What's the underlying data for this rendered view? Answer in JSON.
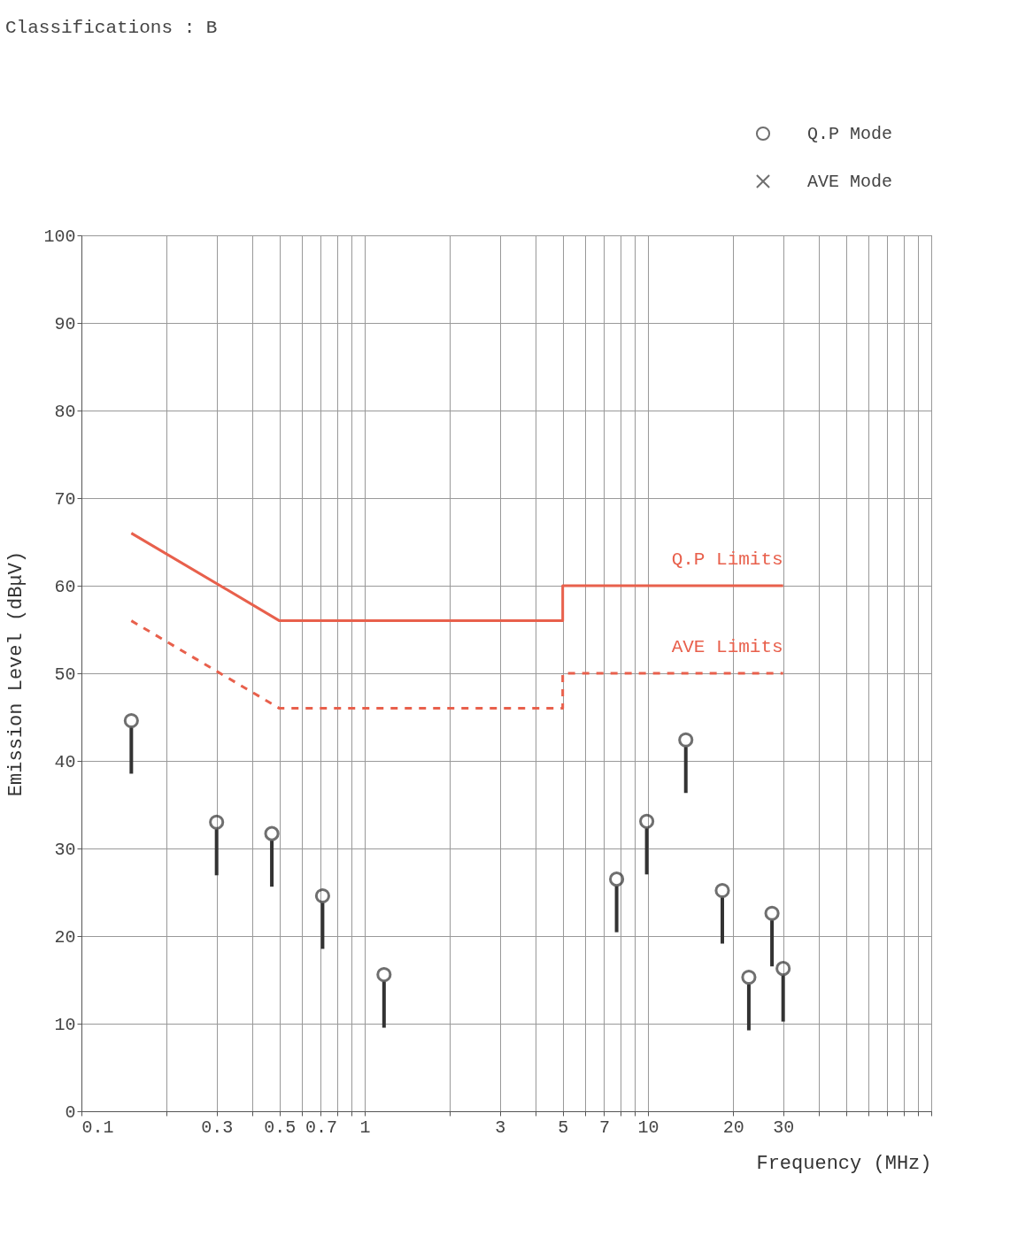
{
  "chart_data": {
    "type": "scatter",
    "xlabel": "Frequency (MHz)",
    "ylabel": "Emission Level (dBμV)",
    "annotations": [
      "Classifications    : B"
    ],
    "xlim": [
      0.1,
      100
    ],
    "ylim": [
      0,
      100
    ],
    "xticks": [
      0.1,
      {
        "value": 0.2,
        "label": null
      },
      0.3,
      {
        "value": 0.4,
        "label": null
      },
      0.5,
      {
        "value": 0.6,
        "label": null
      },
      0.7,
      {
        "value": 0.8,
        "label": null
      },
      {
        "value": 0.9,
        "label": null
      },
      1,
      {
        "value": 2,
        "label": null
      },
      3,
      {
        "value": 4,
        "label": null
      },
      5,
      {
        "value": 6,
        "label": null
      },
      7,
      {
        "value": 8,
        "label": null
      },
      {
        "value": 9,
        "label": null
      },
      10,
      20,
      30,
      {
        "value": 40,
        "label": null
      },
      {
        "value": 50,
        "label": null
      },
      {
        "value": 60,
        "label": null
      },
      {
        "value": 70,
        "label": null
      },
      {
        "value": 80,
        "label": null
      },
      {
        "value": 90,
        "label": null
      },
      {
        "value": 100,
        "label": null
      }
    ],
    "yticks": [
      0,
      10,
      20,
      30,
      40,
      50,
      60,
      70,
      80,
      90,
      100
    ],
    "grid": true,
    "log": "x",
    "legend": "top right",
    "series": [
      {
        "name": "Q.P Mode",
        "type": "scatter",
        "marker": "circle",
        "color": "#333333",
        "x": [
          0.15,
          0.3,
          0.47,
          0.71,
          1.17,
          7.75,
          9.9,
          13.6,
          18.3,
          22.7,
          27.4,
          30
        ],
        "values": [
          44.6,
          33,
          31.7,
          24.6,
          15.6,
          26.5,
          33.1,
          42.4,
          25.2,
          15.3,
          22.6,
          16.3
        ]
      },
      {
        "name": "AVE Mode",
        "type": "scatter",
        "marker": "cross",
        "color": "#333333"
      },
      {
        "name": "Q.P Limits",
        "type": "line",
        "line_style": "solid",
        "color": "#e8604c",
        "x": [
          0.15,
          0.5,
          5,
          5,
          30
        ],
        "values": [
          66,
          56,
          56,
          60,
          60
        ]
      },
      {
        "name": "AVE Limits",
        "type": "line",
        "line_style": "dashed",
        "color": "#e8604c",
        "x": [
          0.15,
          0.5,
          5,
          5,
          30
        ],
        "values": [
          56,
          46,
          46,
          50,
          50
        ]
      }
    ]
  }
}
